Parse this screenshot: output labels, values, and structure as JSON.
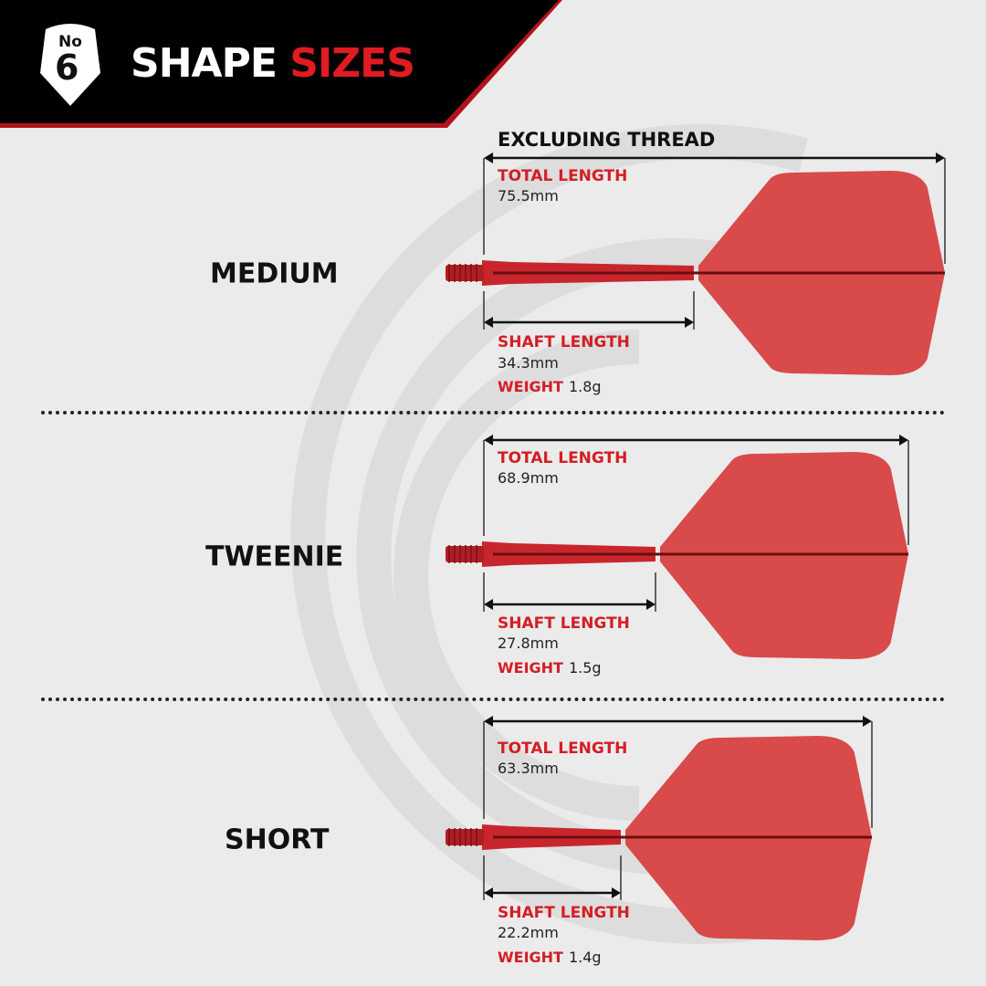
{
  "header": {
    "badge_no": "No",
    "badge_number": "6",
    "title_white": "SHAPE",
    "title_red": "SIZES"
  },
  "note": "EXCLUDING THREAD",
  "labels": {
    "total": "TOTAL LENGTH",
    "shaft": "SHAFT LENGTH",
    "weight": "WEIGHT"
  },
  "colors": {
    "accent": "#e01b22",
    "flight": "#d94a4a",
    "header_bg": "#000000"
  },
  "rows": [
    {
      "name": "MEDIUM",
      "total": "75.5mm",
      "shaft": "34.3mm",
      "weight": "1.8g"
    },
    {
      "name": "TWEENIE",
      "total": "68.9mm",
      "shaft": "27.8mm",
      "weight": "1.5g"
    },
    {
      "name": "SHORT",
      "total": "63.3mm",
      "shaft": "22.2mm",
      "weight": "1.4g"
    }
  ]
}
